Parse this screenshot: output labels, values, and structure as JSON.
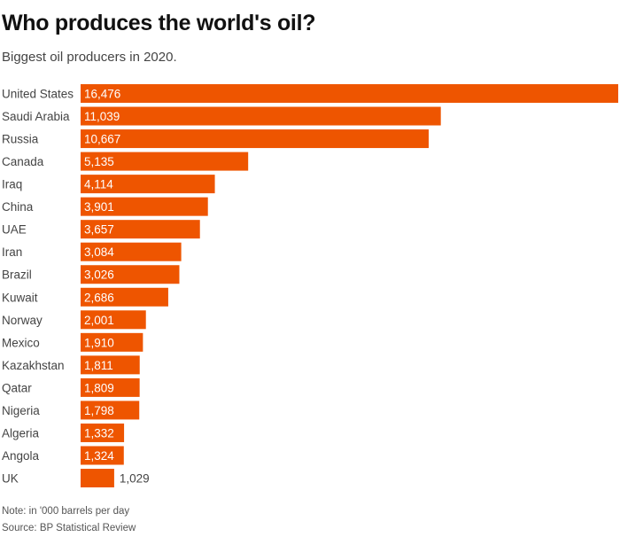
{
  "title": "Who produces the world's oil?",
  "subtitle": "Biggest oil producers in 2020.",
  "note": "Note: in '000 barrels per day",
  "source": "Source: BP Statistical Review",
  "colors": {
    "bar": "#EE5500",
    "inside_label": "#ffffff",
    "outside_label": "#444444"
  },
  "chart_data": {
    "type": "bar",
    "orientation": "horizontal",
    "title": "Who produces the world's oil?",
    "subtitle": "Biggest oil producers in 2020.",
    "xlabel": "",
    "ylabel": "",
    "unit": "'000 barrels per day",
    "xlim": [
      0,
      16476
    ],
    "grid": false,
    "categories": [
      "United States",
      "Saudi Arabia",
      "Russia",
      "Canada",
      "Iraq",
      "China",
      "UAE",
      "Iran",
      "Brazil",
      "Kuwait",
      "Norway",
      "Mexico",
      "Kazakhstan",
      "Qatar",
      "Nigeria",
      "Algeria",
      "Angola",
      "UK"
    ],
    "values": [
      16476,
      11039,
      10667,
      5135,
      4114,
      3901,
      3657,
      3084,
      3026,
      2686,
      2001,
      1910,
      1811,
      1809,
      1798,
      1332,
      1324,
      1029
    ],
    "value_labels": [
      "16,476",
      "11,039",
      "10,667",
      "5,135",
      "4,114",
      "3,901",
      "3,657",
      "3,084",
      "3,026",
      "2,686",
      "2,001",
      "1,910",
      "1,811",
      "1,809",
      "1,798",
      "1,332",
      "1,324",
      "1,029"
    ]
  }
}
